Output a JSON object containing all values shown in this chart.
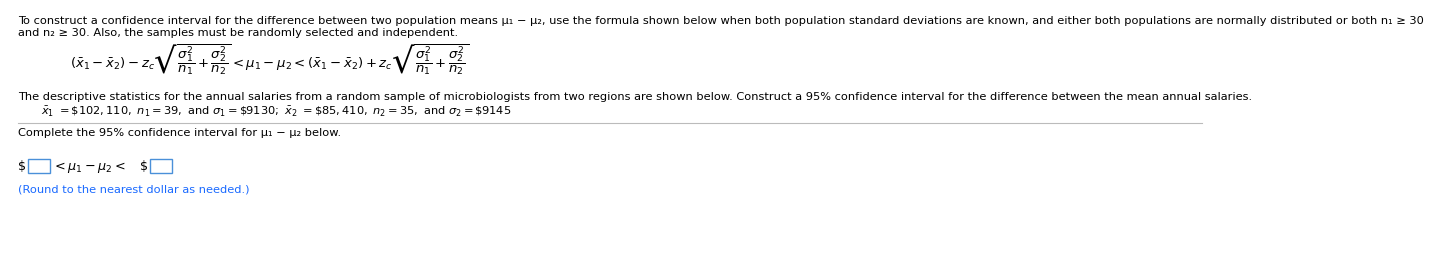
{
  "bg_color": "#ffffff",
  "text_color": "#000000",
  "blue_color": "#1a6aff",
  "box_color": "#4a90d9",
  "line1": "To construct a confidence interval for the difference between two population means μ₁ − μ₂, use the formula shown below when both population standard deviations are known, and either both populations are normally distributed or both n₁ ≥ 30",
  "line2": "and n₂ ≥ 30. Also, the samples must be randomly selected and independent.",
  "desc_line": "The descriptive statistics for the annual salaries from a random sample of microbiologists from two regions are shown below. Construct a 95% confidence interval for the difference between the mean annual salaries.",
  "complete_line": "Complete the 95% confidence interval for μ₁ − μ₂ below.",
  "round_note": "(Round to the nearest dollar as needed.)",
  "font_size_main": 8.2,
  "font_size_stats": 8.2,
  "font_size_formula": 9.5
}
